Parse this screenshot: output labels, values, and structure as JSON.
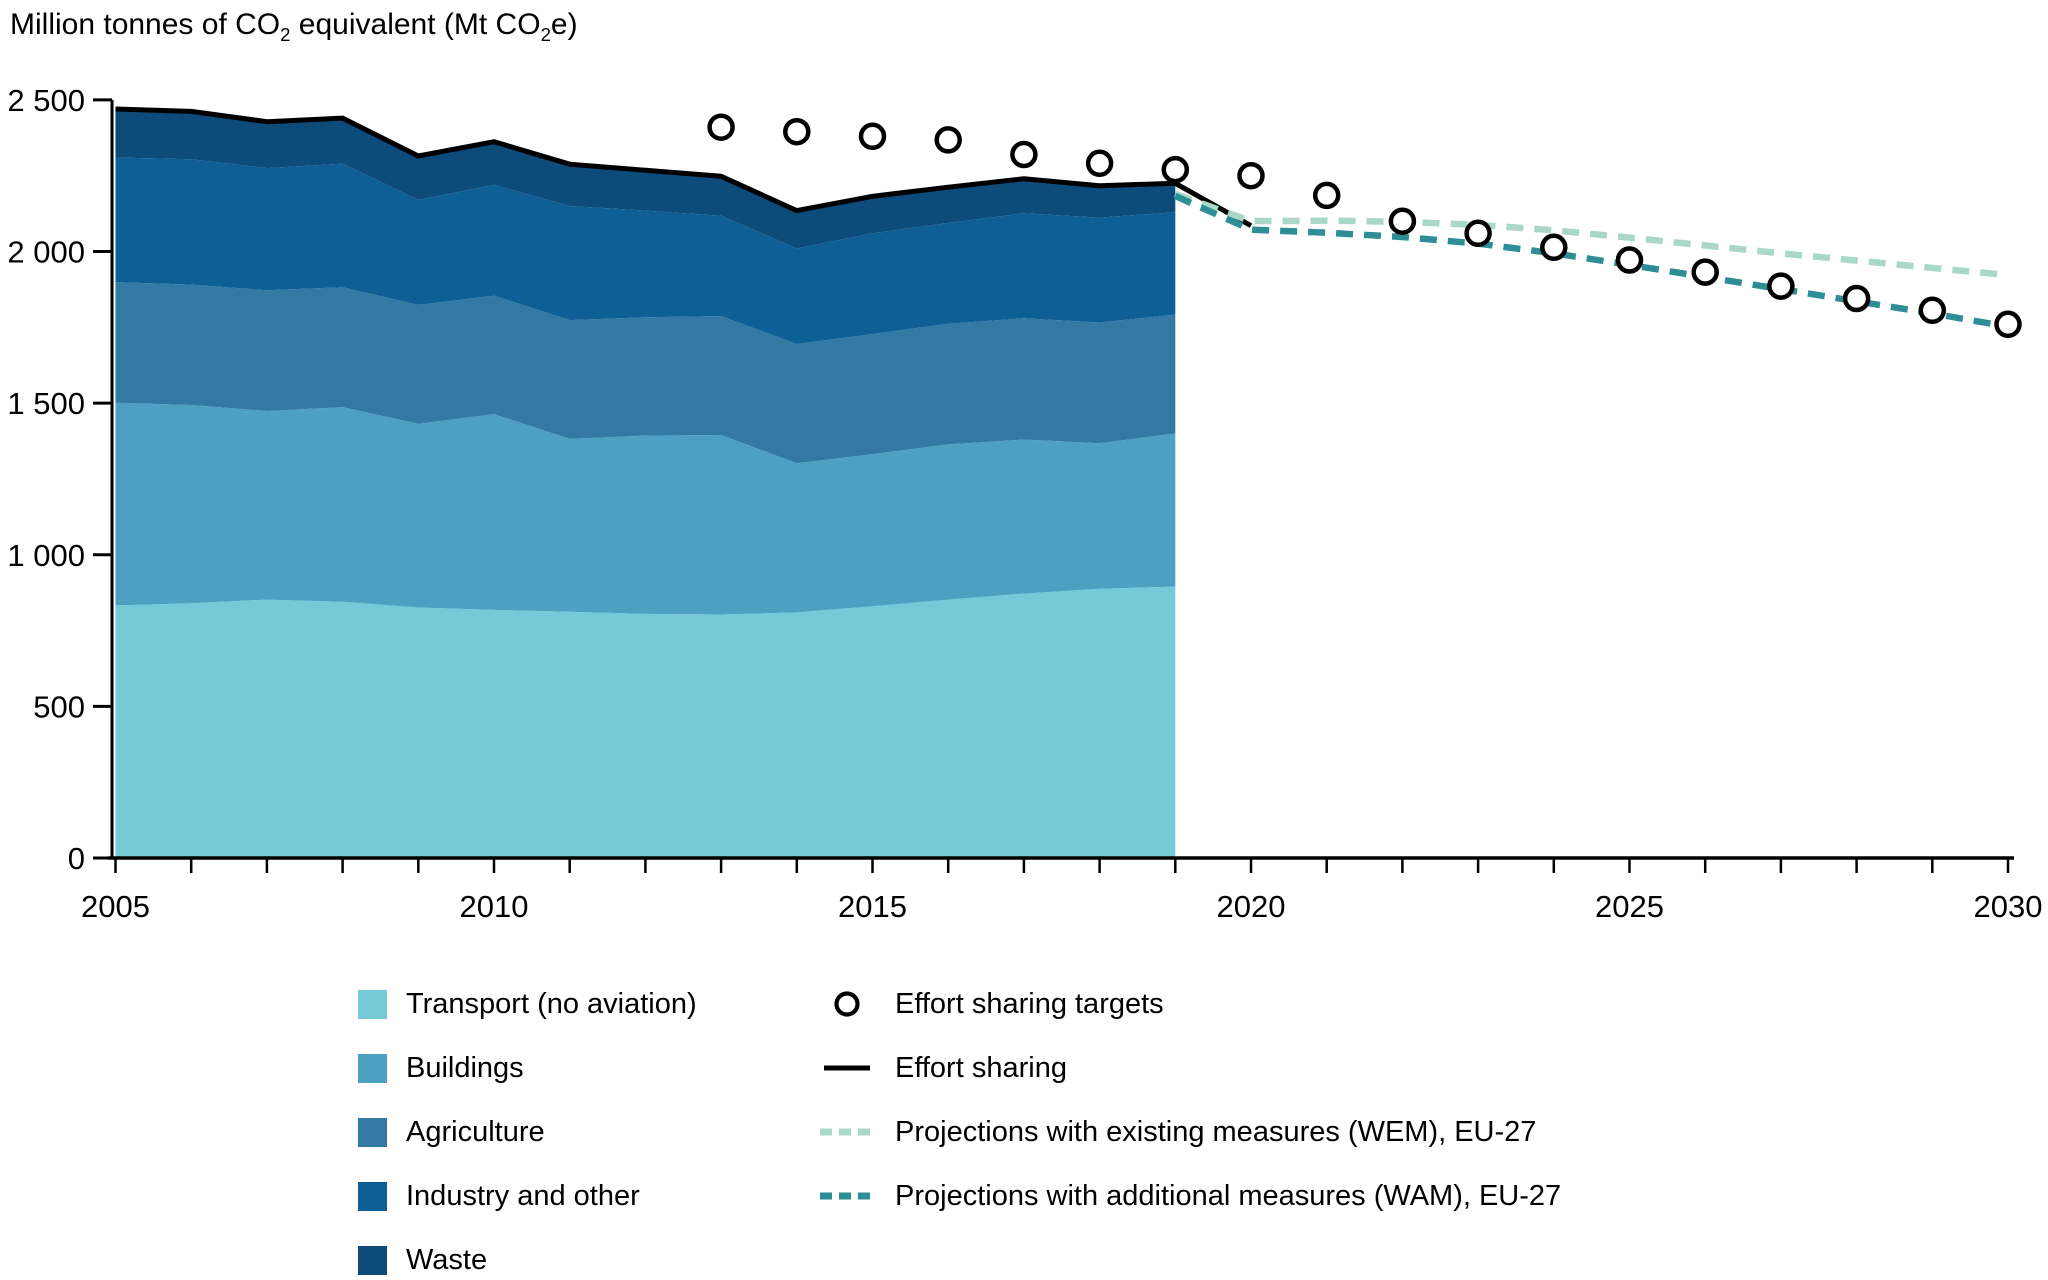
{
  "title": {
    "parts": [
      "Million tonnes of CO",
      "2",
      " equivalent (Mt CO",
      "2",
      "e)"
    ]
  },
  "colors": {
    "transport": "#76CAD8",
    "buildings": "#4EA0C3",
    "agriculture": "#3279A4",
    "industry": "#0E5F96",
    "waste": "#0D4B7B",
    "effort_sharing_line": "#000000",
    "wem_line": "#A9D8C8",
    "wam_line": "#2E8E96",
    "target_marker": "#000000",
    "axis": "#000000"
  },
  "legend": {
    "sectors": [
      {
        "label": "Transport (no aviation)",
        "color": "#76CAD8"
      },
      {
        "label": "Buildings",
        "color": "#4EA0C3"
      },
      {
        "label": "Agriculture",
        "color": "#3279A4"
      },
      {
        "label": "Industry and other",
        "color": "#0E5F96"
      },
      {
        "label": "Waste",
        "color": "#0D4B7B"
      }
    ],
    "lines": [
      {
        "label": "Effort sharing targets",
        "marker": "open-circle",
        "color": "#000000"
      },
      {
        "label": "Effort sharing",
        "marker": "solid-line",
        "color": "#000000"
      },
      {
        "label": "Projections with existing measures (WEM), EU-27",
        "marker": "dashed-line",
        "color": "#A9D8C8"
      },
      {
        "label": "Projections with additional measures (WAM), EU-27",
        "marker": "dashed-line",
        "color": "#2E8E96"
      }
    ]
  },
  "chart_data": {
    "type": "area",
    "subtype": "stacked-area with overlay lines and open-circle targets",
    "title": "Million tonnes of CO2 equivalent (Mt CO2e)",
    "xlabel": "",
    "ylabel": "Mt CO2e",
    "xlim": [
      2005,
      2030
    ],
    "ylim": [
      0,
      2500
    ],
    "grid": false,
    "legend_position": "bottom",
    "yticks": {
      "values": [
        0,
        500,
        1000,
        1500,
        2000,
        2500
      ],
      "labels": [
        "0",
        "500",
        "1 000",
        "1 500",
        "2 000",
        "2 500"
      ]
    },
    "xticks": {
      "major": [
        2005,
        2010,
        2015,
        2020,
        2025,
        2030
      ],
      "minor_step_years": 1
    },
    "stack": {
      "years": [
        2005,
        2006,
        2007,
        2008,
        2009,
        2010,
        2011,
        2012,
        2013,
        2014,
        2015,
        2016,
        2017,
        2018,
        2019
      ],
      "series": [
        {
          "name": "Transport (no aviation)",
          "color": "#76CAD8",
          "values": [
            833,
            840,
            852,
            845,
            826,
            818,
            812,
            805,
            803,
            810,
            830,
            852,
            872,
            888,
            895
          ]
        },
        {
          "name": "Buildings",
          "color": "#4EA0C3",
          "values": [
            668,
            654,
            622,
            642,
            606,
            646,
            570,
            588,
            592,
            492,
            502,
            512,
            508,
            480,
            505
          ]
        },
        {
          "name": "Agriculture",
          "color": "#3279A4",
          "values": [
            398,
            397,
            398,
            395,
            392,
            390,
            392,
            390,
            392,
            393,
            396,
            398,
            400,
            398,
            392
          ]
        },
        {
          "name": "Industry and other",
          "color": "#0E5F96",
          "values": [
            411,
            413,
            403,
            408,
            346,
            366,
            376,
            352,
            331,
            315,
            332,
            332,
            346,
            346,
            338
          ]
        },
        {
          "name": "Waste",
          "color": "#0D4B7B",
          "values": [
            160,
            158,
            153,
            150,
            145,
            142,
            138,
            133,
            130,
            125,
            122,
            118,
            114,
            105,
            95
          ]
        }
      ]
    },
    "lines": [
      {
        "name": "Effort sharing",
        "color": "#000000",
        "style": "solid",
        "width": 5,
        "x": [
          2005,
          2006,
          2007,
          2008,
          2009,
          2010,
          2011,
          2012,
          2013,
          2014,
          2015,
          2016,
          2017,
          2018,
          2019,
          2020
        ],
        "y": [
          2470,
          2462,
          2428,
          2440,
          2315,
          2362,
          2288,
          2268,
          2248,
          2135,
          2182,
          2212,
          2240,
          2217,
          2225,
          2085
        ]
      },
      {
        "name": "Projections with existing measures (WEM), EU-27",
        "color": "#A9D8C8",
        "style": "dashed",
        "width": 6.5,
        "x": [
          2019,
          2020,
          2021,
          2022,
          2023,
          2024,
          2025,
          2026,
          2027,
          2028,
          2029,
          2030
        ],
        "y": [
          2190,
          2100,
          2102,
          2098,
          2088,
          2070,
          2046,
          2020,
          1994,
          1970,
          1946,
          1922
        ]
      },
      {
        "name": "Projections with additional measures (WAM), EU-27",
        "color": "#2E8E96",
        "style": "dashed",
        "width": 6.5,
        "x": [
          2019,
          2020,
          2021,
          2022,
          2023,
          2024,
          2025,
          2026,
          2027,
          2028,
          2029,
          2030
        ],
        "y": [
          2183,
          2072,
          2062,
          2048,
          2026,
          1994,
          1956,
          1916,
          1876,
          1836,
          1796,
          1752
        ]
      }
    ],
    "scatter": {
      "name": "Effort sharing targets",
      "marker": "open-circle",
      "color": "#000000",
      "x": [
        2013,
        2014,
        2015,
        2016,
        2017,
        2018,
        2019,
        2020,
        2021,
        2022,
        2023,
        2024,
        2025,
        2026,
        2027,
        2028,
        2029,
        2030
      ],
      "y": [
        2410,
        2395,
        2380,
        2368,
        2320,
        2291,
        2270,
        2250,
        2185,
        2100,
        2060,
        2014,
        1972,
        1932,
        1886,
        1845,
        1806,
        1760
      ]
    }
  }
}
